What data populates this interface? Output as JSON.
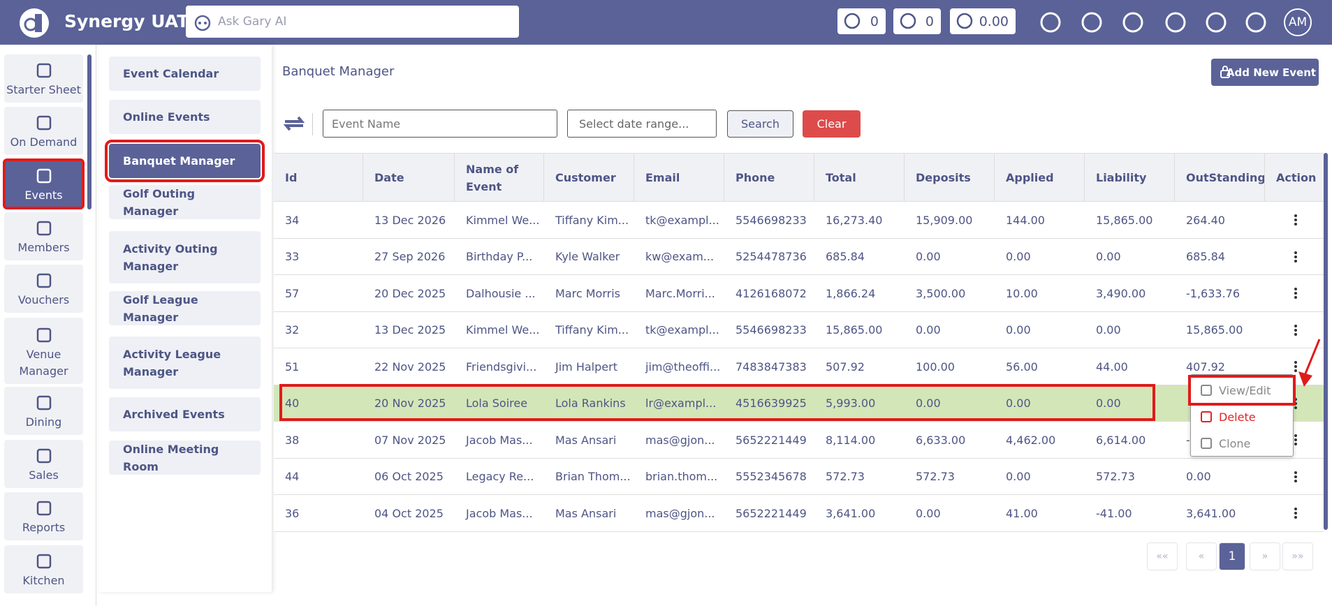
{
  "header": {
    "app_title": "Synergy UAT",
    "search_placeholder": "Ask Gary AI",
    "badges": [
      "0",
      "0",
      "0.00"
    ],
    "avatar": "AM"
  },
  "sidebar": [
    "Starter Sheet",
    "On Demand",
    "Events",
    "Members",
    "Vouchers",
    "Venue Manager",
    "Dining",
    "Sales",
    "Reports",
    "Kitchen"
  ],
  "submenu": [
    "Event Calendar",
    "Online Events",
    "Banquet Manager",
    "Golf Outing Manager",
    "Activity Outing Manager",
    "Golf League Manager",
    "Activity League Manager",
    "Archived Events",
    "Online Meeting Room"
  ],
  "page": {
    "title": "Banquet Manager",
    "add_button": "Add New Event",
    "event_name_placeholder": "Event Name",
    "date_placeholder": "Select date range...",
    "search_button": "Search",
    "clear_button": "Clear"
  },
  "table": {
    "columns": [
      "Id",
      "Date",
      "Name of Event",
      "Customer",
      "Email",
      "Phone",
      "Total",
      "Deposits",
      "Applied",
      "Liability",
      "OutStanding",
      "Action"
    ],
    "rows": [
      [
        "34",
        "13 Dec 2026",
        "Kimmel We...",
        "Tiffany Kim...",
        "tk@exampl...",
        "5546698233",
        "16,273.40",
        "15,909.00",
        "144.00",
        "15,865.00",
        "264.40"
      ],
      [
        "33",
        "27 Sep 2026",
        "Birthday P...",
        "Kyle Walker",
        "kw@exam...",
        "5254478736",
        "685.84",
        "0.00",
        "0.00",
        "0.00",
        "685.84"
      ],
      [
        "57",
        "20 Dec 2025",
        "Dalhousie ...",
        "Marc Morris",
        "Marc.Morri...",
        "4126168072",
        "1,866.24",
        "3,500.00",
        "10.00",
        "3,490.00",
        "-1,633.76"
      ],
      [
        "32",
        "13 Dec 2025",
        "Kimmel We...",
        "Tiffany Kim...",
        "tk@exampl...",
        "5546698233",
        "15,865.00",
        "0.00",
        "0.00",
        "0.00",
        "15,865.00"
      ],
      [
        "51",
        "22 Nov 2025",
        "Friendsgivi...",
        "Jim Halpert",
        "jim@theoffi...",
        "7483847383",
        "507.92",
        "100.00",
        "56.00",
        "44.00",
        "407.92"
      ],
      [
        "40",
        "20 Nov 2025",
        "Lola Soiree",
        "Lola Rankins",
        "lr@exampl...",
        "4516639925",
        "5,993.00",
        "0.00",
        "0.00",
        "0.00",
        ""
      ],
      [
        "38",
        "07 Nov 2025",
        "Jacob Mas...",
        "Mas Ansari",
        "mas@gjon...",
        "5652221449",
        "8,114.00",
        "6,633.00",
        "4,462.00",
        "6,614.00",
        "-"
      ],
      [
        "44",
        "06 Oct 2025",
        "Legacy Re...",
        "Brian Thom...",
        "brian.thom...",
        "5552345678",
        "572.73",
        "572.73",
        "0.00",
        "572.73",
        "0.00"
      ],
      [
        "36",
        "04 Oct 2025",
        "Jacob Mas...",
        "Mas Ansari",
        "mas@gjon...",
        "5652221449",
        "3,641.00",
        "0.00",
        "41.00",
        "-41.00",
        "3,641.00"
      ]
    ]
  },
  "context_menu": [
    "View/Edit",
    "Delete",
    "Clone"
  ],
  "pagination": [
    "««",
    "«",
    "1",
    "»",
    "»»"
  ]
}
